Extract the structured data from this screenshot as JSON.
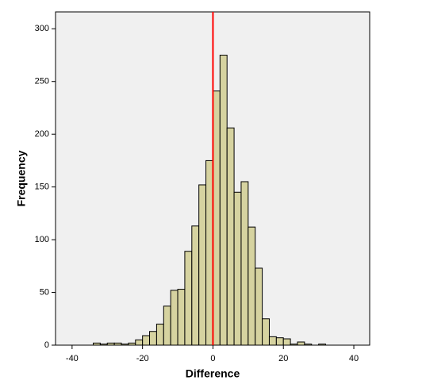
{
  "chart_data": {
    "type": "histogram",
    "xlabel": "Difference",
    "ylabel": "Frequency",
    "bins": [
      -40,
      -38,
      -36,
      -34,
      -32,
      -30,
      -28,
      -26,
      -24,
      -22,
      -20,
      -18,
      -16,
      -14,
      -12,
      -10,
      -8,
      -6,
      -4,
      -2,
      0,
      2,
      4,
      6,
      8,
      10,
      12,
      14,
      16,
      18,
      20,
      22,
      24,
      26,
      28,
      30,
      32,
      34,
      36,
      38,
      40
    ],
    "counts": [
      0,
      0,
      0,
      2,
      1,
      2,
      2,
      1,
      2,
      5,
      9,
      13,
      20,
      37,
      52,
      53,
      89,
      113,
      152,
      175,
      241,
      275,
      206,
      145,
      155,
      112,
      73,
      25,
      8,
      7,
      6,
      1,
      3,
      1,
      0,
      1,
      0,
      0,
      0,
      0
    ],
    "color": "#d6d3a0",
    "edge_color": "#000000",
    "background": "#f0f0f0",
    "reference_line": 0,
    "reference_color": "#ff0000",
    "xlim": [
      -44.7,
      44.5
    ],
    "ylim": [
      0,
      316
    ],
    "xticks": [
      -40,
      -20,
      0,
      20,
      40
    ],
    "yticks": [
      0,
      50,
      100,
      150,
      200,
      250,
      300
    ]
  }
}
